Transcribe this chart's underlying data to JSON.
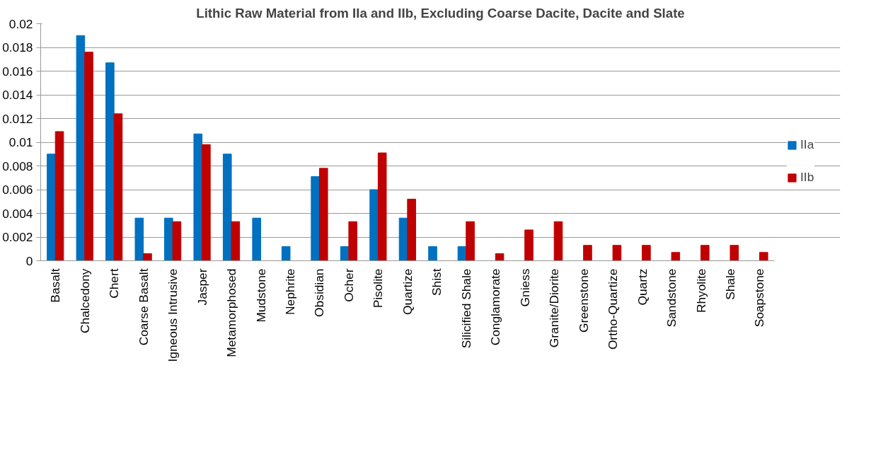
{
  "chart_data": {
    "type": "bar",
    "title": "Lithic Raw Material from IIa and IIb, Excluding Coarse Dacite, Dacite and Slate",
    "categories": [
      "Basalt",
      "Chalcedony",
      "Chert",
      "Coarse Basalt",
      "Igneous Intrusive",
      "Jasper",
      "Metamorphosed",
      "Mudstone",
      "Nephrite",
      "Obsidian",
      "Ocher",
      "Pisolite",
      "Quartize",
      "Shist",
      "Silicified Shale",
      "Conglamorate",
      "Gniess",
      "Granite/Diorite",
      "Greenstone",
      "Ortho-Quartize",
      "Quartz",
      "Sandstone",
      "Rhyolite",
      "Shale",
      "Soapstone"
    ],
    "series": [
      {
        "name": "IIa",
        "color": "#0070c0",
        "values": [
          0.009,
          0.019,
          0.0167,
          0.0036,
          0.0036,
          0.0107,
          0.009,
          0.0036,
          0.0012,
          0.0071,
          0.0012,
          0.006,
          0.0036,
          0.0012,
          0.0012,
          null,
          null,
          null,
          null,
          null,
          null,
          null,
          null,
          null,
          null
        ]
      },
      {
        "name": "IIb",
        "color": "#c00000",
        "values": [
          0.0109,
          0.0176,
          0.0124,
          0.0006,
          0.0033,
          0.0098,
          0.0033,
          null,
          null,
          0.0078,
          0.0033,
          0.0091,
          0.0052,
          null,
          0.0033,
          0.0006,
          0.0026,
          0.0033,
          0.0013,
          0.0013,
          0.0013,
          0.0007,
          0.0013,
          0.0013,
          0.0007
        ]
      }
    ],
    "ylim": [
      0,
      0.02
    ],
    "yticks": [
      0,
      {
        "value": 0.002,
        "label": "0.002"
      },
      {
        "value": 0.004,
        "label": "0.004"
      },
      {
        "value": 0.006,
        "label": "0.006"
      },
      {
        "value": 0.008,
        "label": "0.008"
      },
      {
        "value": 0.01,
        "label": "0.01"
      },
      {
        "value": 0.012,
        "label": "0.012"
      },
      {
        "value": 0.014,
        "label": "0.014"
      },
      {
        "value": 0.016,
        "label": "0.016"
      },
      {
        "value": 0.018,
        "label": "0.018"
      },
      {
        "value": 0.02,
        "label": "0.02"
      }
    ],
    "grid": "y",
    "legend": "right"
  }
}
